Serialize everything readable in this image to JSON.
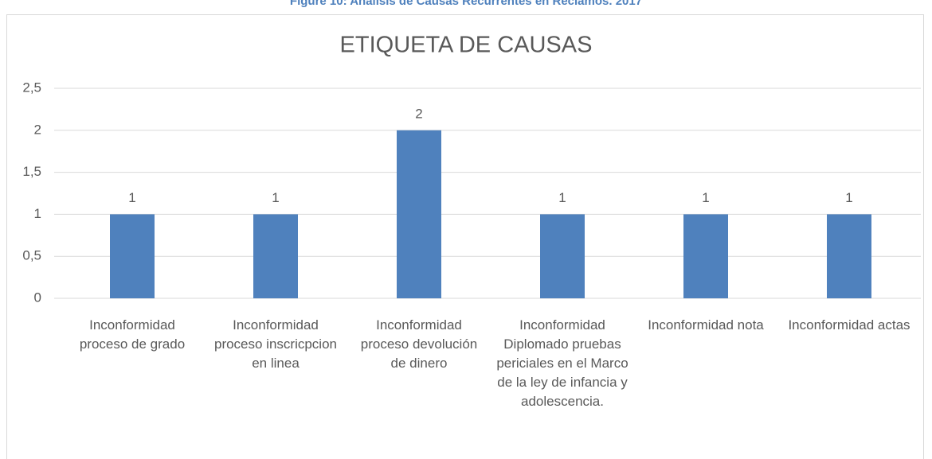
{
  "caption": "Figure 10: Análisis de Causas Recurrentes en Reclamos. 2017",
  "chart_data": {
    "type": "bar",
    "title": "ETIQUETA DE CAUSAS",
    "categories": [
      "Inconformidad proceso de grado",
      "Inconformidad proceso inscricpcion en linea",
      "Inconformidad proceso devolución de dinero",
      "Inconformidad Diplomado pruebas periciales en el Marco de la ley de infancia y adolescencia.",
      "Inconformidad nota",
      "Inconformidad actas"
    ],
    "values": [
      1,
      1,
      2,
      1,
      1,
      1
    ],
    "color": "#4f81bd",
    "ylim": [
      0,
      2.5
    ],
    "yticks": [
      0,
      {
        "value": 0.5,
        "label": "0,5"
      },
      1,
      {
        "value": 1.5,
        "label": "1,5"
      },
      2,
      {
        "value": 2.5,
        "label": "2,5"
      }
    ],
    "grid": true
  }
}
